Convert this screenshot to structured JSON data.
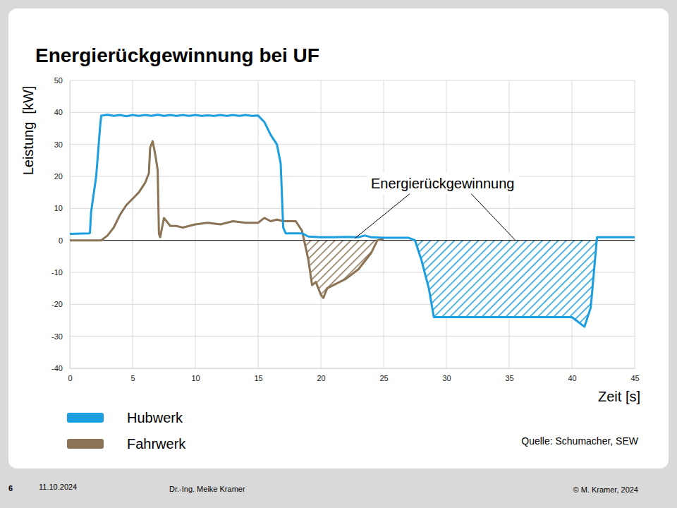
{
  "chart_data": {
    "type": "line",
    "title": "Energierückgewinnung bei UF",
    "x_label": "Zeit [s]",
    "y_label": "Leistung  [kW]",
    "xlim": [
      0,
      45
    ],
    "xticks": [
      0,
      5,
      10,
      15,
      20,
      25,
      30,
      35,
      40,
      45
    ],
    "ylim": [
      -40,
      50
    ],
    "yticks": [
      -40,
      -30,
      -20,
      -10,
      0,
      10,
      20,
      30,
      40,
      50
    ],
    "grid": true,
    "legend": "bottom-left",
    "hlines": [
      0
    ],
    "series": [
      {
        "name": "Hubwerk",
        "color": "#1a9ee0",
        "x": [
          0,
          1.5,
          1.6,
          1.7,
          2.1,
          2.4,
          2.5,
          3,
          3.5,
          4,
          4.5,
          5,
          5.5,
          6,
          6.5,
          7,
          7.5,
          8,
          8.5,
          9,
          9.5,
          10,
          10.5,
          11,
          11.5,
          12,
          12.5,
          13,
          13.5,
          14,
          14.5,
          15,
          15.5,
          16,
          16.5,
          16.8,
          17,
          17.2,
          18.5,
          19,
          20,
          21,
          22,
          23,
          23.5,
          24,
          25,
          27,
          27.5,
          28,
          28.6,
          29,
          30,
          35,
          40,
          40.5,
          41,
          41.5,
          42,
          43,
          45
        ],
        "values": [
          2,
          2.2,
          2.3,
          9,
          20,
          35,
          39,
          39.3,
          38.9,
          39.2,
          38.8,
          39.2,
          38.9,
          39.2,
          38.9,
          39.3,
          38.9,
          39.2,
          38.9,
          39.2,
          38.9,
          39.2,
          38.9,
          39.1,
          38.9,
          39.2,
          38.9,
          39.2,
          38.9,
          39.2,
          38.9,
          39,
          37,
          33,
          30,
          24,
          4,
          2.2,
          2.2,
          1.2,
          1,
          1,
          1.1,
          1,
          1.5,
          1,
          0.8,
          0.8,
          0,
          -6,
          -15,
          -24,
          -24,
          -24,
          -24,
          -25.5,
          -27,
          -21,
          1,
          1,
          1
        ]
      },
      {
        "name": "Fahrwerk",
        "color": "#8b7355",
        "x": [
          0,
          2.5,
          3,
          3.5,
          4,
          4.5,
          5,
          5.5,
          6,
          6.3,
          6.4,
          6.6,
          6.8,
          7,
          7.1,
          7.2,
          7.5,
          8,
          8.5,
          9,
          10,
          11,
          12,
          13,
          14,
          15,
          15.5,
          16,
          16.5,
          17,
          18,
          18.5,
          19,
          19.3,
          19.6,
          20,
          20.2,
          20.5,
          21,
          22,
          23,
          24,
          24.5,
          25
        ],
        "values": [
          0,
          0,
          1.5,
          4,
          8,
          11,
          13,
          15,
          18,
          21,
          29,
          31,
          27,
          22,
          2,
          1,
          7,
          4.5,
          4.5,
          4,
          5,
          5.5,
          5,
          6,
          5.5,
          5.5,
          7,
          6,
          6.5,
          6,
          6,
          3,
          -6,
          -14,
          -13,
          -17,
          -18,
          -15,
          -14,
          -12,
          -9,
          -4,
          0,
          0.5
        ]
      }
    ],
    "annotations": [
      {
        "text": "Energierückgewinnung",
        "x": 29.7,
        "y": 16.3,
        "targets": [
          [
            22.7,
            0.6
          ],
          [
            35.5,
            0
          ]
        ]
      }
    ],
    "source": "Quelle: Schumacher, SEW"
  },
  "slide": {
    "page": 6,
    "date": "11.10.2024",
    "author": "Dr.-Ing. Meike Kramer",
    "copyright": "© M. Kramer, 2024"
  }
}
